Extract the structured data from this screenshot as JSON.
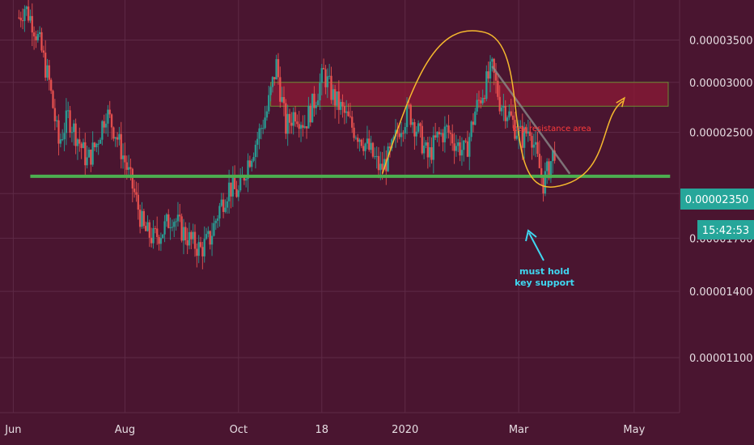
{
  "colors": {
    "background": "#4a1530",
    "grid": "#5e2a46",
    "up": "#26a69a",
    "down": "#ef5350",
    "support_line": "#4caf50",
    "resistance_fill": "#8b1a35",
    "resistance_border": "#6d8c32",
    "curve": "#f5b82e",
    "trendline": "#8a8a8a",
    "price_badge": "#26a69a",
    "annotation_red": "#ff3b3b",
    "annotation_cyan": "#3fd6f0"
  },
  "chart_data": {
    "type": "candlestick",
    "y_scale": "log",
    "ylim": [
      9e-06,
      4.05e-05
    ],
    "y_ticks": [
      "0.00001100",
      "0.00001400",
      "0.00001700",
      "0.00002000",
      "0.00002500",
      "0.00003000",
      "0.00003500"
    ],
    "x_ticks": [
      "Jun",
      "Aug",
      "Oct",
      "18",
      "2020",
      "Mar",
      "May"
    ],
    "x_range": [
      "2019-06-01",
      "2020-05-25"
    ],
    "last_price": "0.00002350",
    "countdown": "15:42:53",
    "support_level": 2.13e-05,
    "resistance_zone": [
      2.75e-05,
      3e-05
    ],
    "price_path": [
      [
        "2019-06-11",
        3.8e-05
      ],
      [
        "2019-06-14",
        3.95e-05
      ],
      [
        "2019-06-18",
        3.75e-05
      ],
      [
        "2019-06-22",
        3.45e-05
      ],
      [
        "2019-06-27",
        3e-05
      ],
      [
        "2019-07-02",
        2.4e-05
      ],
      [
        "2019-07-07",
        2.65e-05
      ],
      [
        "2019-07-12",
        2.45e-05
      ],
      [
        "2019-07-17",
        2.25e-05
      ],
      [
        "2019-07-22",
        2.4e-05
      ],
      [
        "2019-07-27",
        2.7e-05
      ],
      [
        "2019-08-01",
        2.5e-05
      ],
      [
        "2019-08-06",
        2.25e-05
      ],
      [
        "2019-08-11",
        2e-05
      ],
      [
        "2019-08-16",
        1.75e-05
      ],
      [
        "2019-08-21",
        1.7e-05
      ],
      [
        "2019-08-26",
        1.75e-05
      ],
      [
        "2019-08-31",
        1.85e-05
      ],
      [
        "2019-09-05",
        1.75e-05
      ],
      [
        "2019-09-10",
        1.68e-05
      ],
      [
        "2019-09-15",
        1.63e-05
      ],
      [
        "2019-09-20",
        1.7e-05
      ],
      [
        "2019-09-25",
        1.9e-05
      ],
      [
        "2019-09-30",
        2.05e-05
      ],
      [
        "2019-10-05",
        2e-05
      ],
      [
        "2019-10-10",
        2.25e-05
      ],
      [
        "2019-10-15",
        2.45e-05
      ],
      [
        "2019-10-20",
        2.7e-05
      ],
      [
        "2019-10-25",
        3.2e-05
      ],
      [
        "2019-10-30",
        2.55e-05
      ],
      [
        "2019-11-04",
        2.7e-05
      ],
      [
        "2019-11-09",
        2.58e-05
      ],
      [
        "2019-11-14",
        2.8e-05
      ],
      [
        "2019-11-19",
        3.1e-05
      ],
      [
        "2019-11-24",
        2.85e-05
      ],
      [
        "2019-11-29",
        2.7e-05
      ],
      [
        "2019-12-04",
        2.55e-05
      ],
      [
        "2019-12-09",
        2.45e-05
      ],
      [
        "2019-12-14",
        2.32e-05
      ],
      [
        "2019-12-19",
        2.18e-05
      ],
      [
        "2019-12-24",
        2.3e-05
      ],
      [
        "2019-12-29",
        2.55e-05
      ],
      [
        "2020-01-03",
        2.7e-05
      ],
      [
        "2020-01-08",
        2.5e-05
      ],
      [
        "2020-01-13",
        2.28e-05
      ],
      [
        "2020-01-18",
        2.45e-05
      ],
      [
        "2020-01-23",
        2.52e-05
      ],
      [
        "2020-01-28",
        2.4e-05
      ],
      [
        "2020-02-02",
        2.32e-05
      ],
      [
        "2020-02-07",
        2.7e-05
      ],
      [
        "2020-02-12",
        2.95e-05
      ],
      [
        "2020-02-16",
        3.15e-05
      ],
      [
        "2020-02-20",
        2.8e-05
      ],
      [
        "2020-02-24",
        2.7e-05
      ],
      [
        "2020-02-28",
        2.55e-05
      ],
      [
        "2020-03-03",
        2.45e-05
      ],
      [
        "2020-03-07",
        2.55e-05
      ],
      [
        "2020-03-11",
        2.25e-05
      ],
      [
        "2020-03-14",
        2.08e-05
      ],
      [
        "2020-03-17",
        2.2e-05
      ],
      [
        "2020-03-20",
        2.35e-05
      ]
    ],
    "trendline": [
      [
        "2020-02-16",
        3.18e-05
      ],
      [
        "2020-03-28",
        2.15e-05
      ]
    ],
    "curve": [
      [
        "2019-12-20",
        2.15e-05
      ],
      [
        "2020-02-12",
        3.6e-05
      ],
      [
        "2020-03-20",
        2.05e-05
      ],
      [
        "2020-04-25",
        2.8e-05
      ]
    ],
    "annotations": {
      "resistance": "key resistance area",
      "support_line1": "must hold",
      "support_line2": "key support"
    }
  }
}
